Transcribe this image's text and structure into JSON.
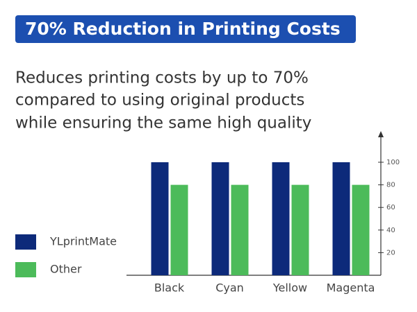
{
  "chart_data": {
    "type": "bar",
    "title": "70% Reduction in Printing Costs",
    "subtitle": [
      "Reduces printing costs by up to 70%",
      "compared to using original products",
      "while ensuring the same high quality"
    ],
    "categories": [
      "Black",
      "Cyan",
      "Yellow",
      "Magenta"
    ],
    "series": [
      {
        "name": "YLprintMate",
        "color": "#0d2a7a",
        "values": [
          100,
          100,
          100,
          100
        ]
      },
      {
        "name": "Other",
        "color": "#4cbb5a",
        "values": [
          80,
          80,
          80,
          80
        ]
      }
    ],
    "ylim": [
      0,
      125
    ],
    "yticks": [
      20,
      40,
      60,
      80,
      100
    ],
    "grid": false
  }
}
